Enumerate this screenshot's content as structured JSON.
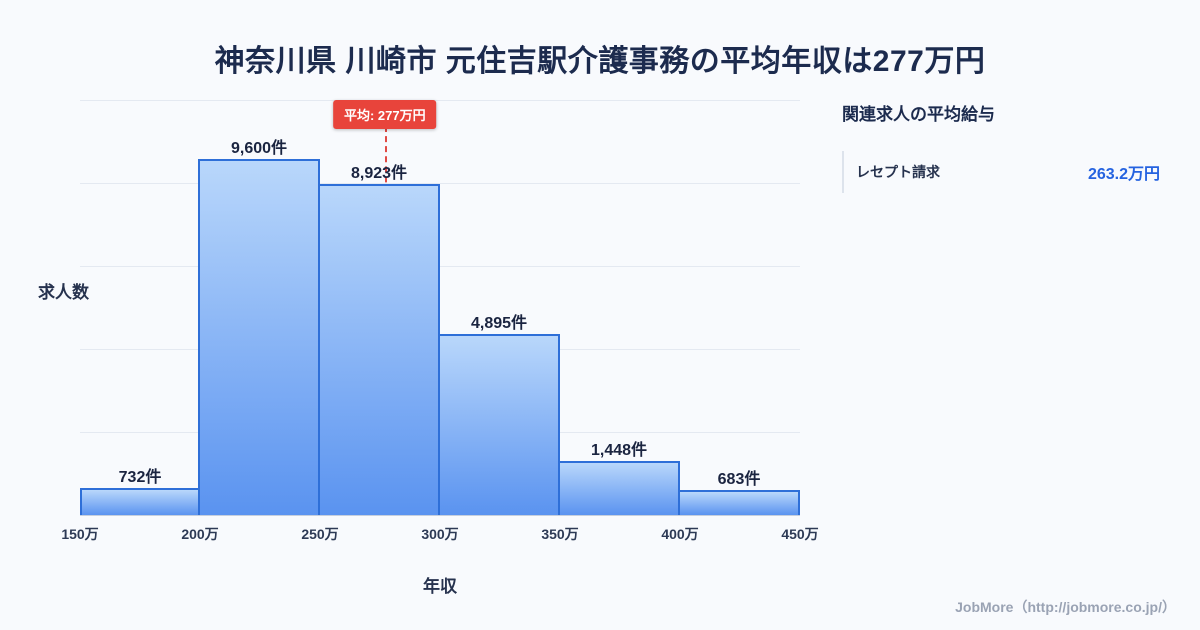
{
  "page": {
    "title": "神奈川県 川崎市 元住吉駅介護事務の平均年収は277万円",
    "footer": "JobMore（http://jobmore.co.jp/）"
  },
  "chart_data": {
    "type": "bar",
    "title": "神奈川県 川崎市 元住吉駅介護事務の平均年収は277万円",
    "xlabel": "年収",
    "ylabel": "求人数",
    "x_ticks": [
      "150万",
      "200万",
      "250万",
      "300万",
      "350万",
      "400万",
      "450万"
    ],
    "x_range": [
      150,
      450
    ],
    "categories": [
      "150万-200万",
      "200万-250万",
      "250万-300万",
      "300万-350万",
      "350万-400万",
      "400万-450万"
    ],
    "values": [
      732,
      9600,
      8923,
      4895,
      1448,
      683
    ],
    "labels": [
      "732件",
      "9,600件",
      "8,923件",
      "4,895件",
      "1,448件",
      "683件"
    ],
    "ylim": [
      0,
      11200
    ],
    "grid": "horizontal",
    "average": {
      "value": 277,
      "label": "平均: 277万円"
    },
    "colors": {
      "bar_top": "#b9d7fb",
      "bar_bottom": "#5a93f0",
      "bar_border": "#2e6fd8",
      "average_line": "#e04a44",
      "average_badge": "#e8443b",
      "title_text": "#1c2b4e",
      "value_accent": "#2563e0"
    }
  },
  "side_panel": {
    "heading": "関連求人の平均給与",
    "items": [
      {
        "label": "レセプト請求",
        "value": "263.2万円"
      }
    ]
  }
}
